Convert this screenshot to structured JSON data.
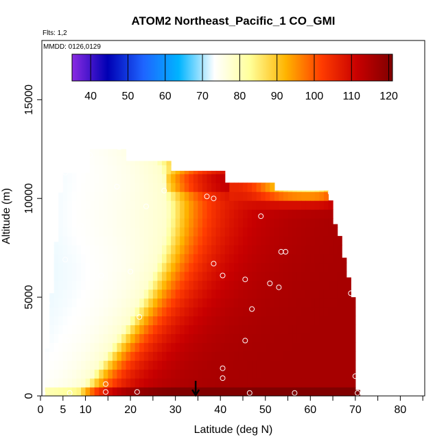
{
  "chart_data": {
    "type": "heatmap",
    "title": "ATOM2 Northeast_Pacific_1 CO_GMI",
    "subtitle_flights": "Flts: 1,2",
    "subtitle_dates": "MMDD: 0126,0129",
    "xlabel": "Latitude (deg N)",
    "ylabel": "Altitude (m)",
    "xlim": [
      0,
      85
    ],
    "ylim": [
      0,
      18000
    ],
    "x_ticks": [
      0,
      5,
      10,
      20,
      30,
      40,
      50,
      60,
      70,
      80
    ],
    "x_tick_labels": [
      "0",
      "5",
      "10",
      "20",
      "30",
      "40",
      "50",
      "60",
      "70",
      "80"
    ],
    "x_minor_ticks": [
      15,
      25,
      35,
      45,
      55,
      65,
      75,
      85
    ],
    "y_ticks": [
      0,
      5000,
      10000,
      15000
    ],
    "y_tick_labels": [
      "0",
      "5000",
      "10000",
      "15000"
    ],
    "colorbar": {
      "min": 35,
      "max": 121,
      "ticks": [
        40,
        50,
        60,
        70,
        80,
        90,
        100,
        110,
        120
      ],
      "tick_labels": [
        "40",
        "50",
        "60",
        "70",
        "80",
        "90",
        "100",
        "110",
        "120"
      ],
      "colors": [
        "#8a2be2",
        "#0000b4",
        "#1e64ff",
        "#00b4ff",
        "#ffffff",
        "#ffff99",
        "#ffb400",
        "#ff3c00",
        "#c80000",
        "#800000"
      ]
    },
    "marker": {
      "label": "arrow",
      "latitude": 34.5,
      "altitude": 0
    },
    "flight_points": [
      [
        0.5,
        150
      ],
      [
        6.5,
        150
      ],
      [
        14.5,
        200
      ],
      [
        21.5,
        200
      ],
      [
        46.5,
        150
      ],
      [
        56.5,
        150
      ],
      [
        70.5,
        150
      ],
      [
        14.5,
        600
      ],
      [
        40.5,
        900
      ],
      [
        70,
        1000
      ],
      [
        1,
        1400
      ],
      [
        40.5,
        1400
      ],
      [
        6,
        2800
      ],
      [
        45.5,
        2800
      ],
      [
        22,
        4000
      ],
      [
        47,
        4400
      ],
      [
        1.5,
        4700
      ],
      [
        69,
        5200
      ],
      [
        53,
        5500
      ],
      [
        51,
        5700
      ],
      [
        45.5,
        5900
      ],
      [
        13.5,
        6100
      ],
      [
        2,
        6100
      ],
      [
        40.5,
        6100
      ],
      [
        20,
        6300
      ],
      [
        38.5,
        6700
      ],
      [
        5.5,
        6900
      ],
      [
        53.5,
        7300
      ],
      [
        54.5,
        7300
      ],
      [
        9,
        8600
      ],
      [
        49,
        9100
      ],
      [
        23.5,
        9600
      ],
      [
        38.5,
        10000
      ],
      [
        37,
        10100
      ],
      [
        2.5,
        10300
      ],
      [
        27.5,
        10400
      ],
      [
        64.5,
        10300
      ],
      [
        17,
        10600
      ],
      [
        4,
        11300
      ],
      [
        5.5,
        11300
      ],
      [
        11,
        12200
      ],
      [
        17.5,
        12600
      ]
    ]
  }
}
